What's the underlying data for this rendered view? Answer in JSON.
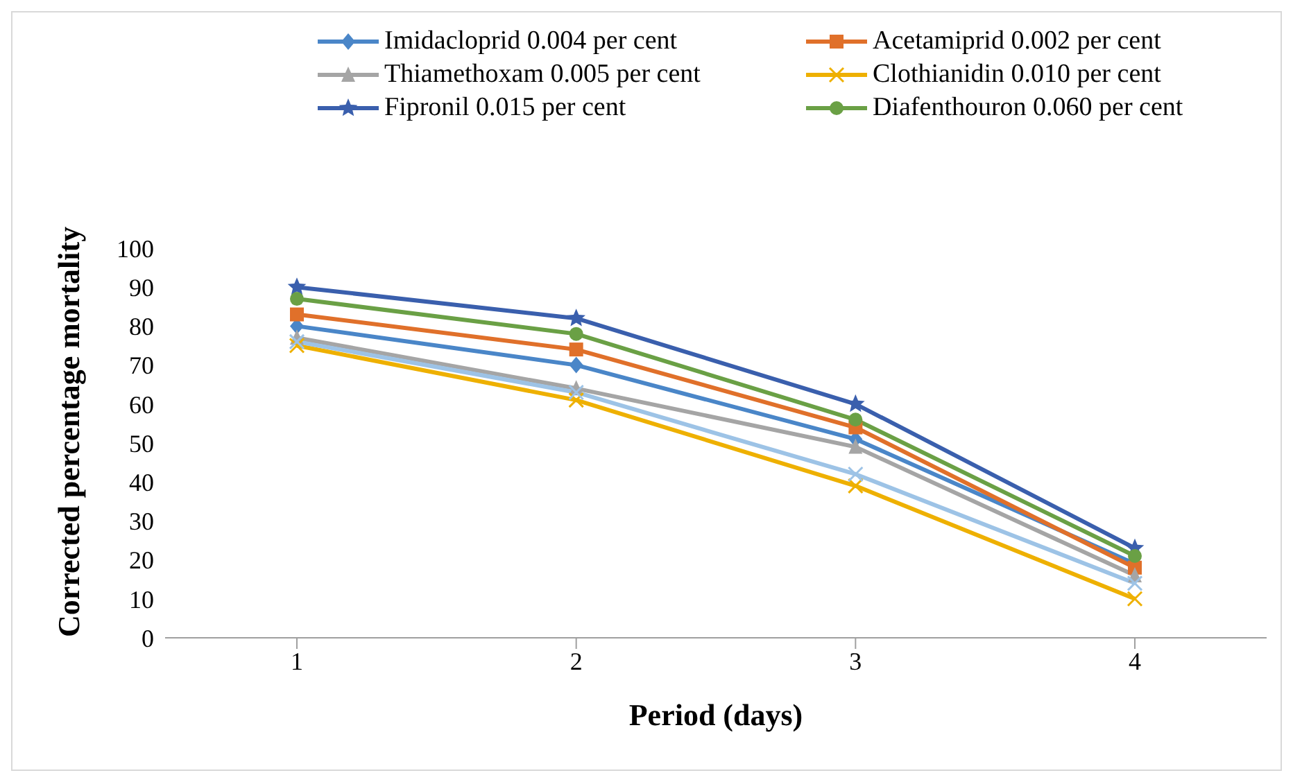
{
  "chart_data": {
    "type": "line",
    "xlabel": "Period (days)",
    "ylabel": "Corrected percentage mortality",
    "categories": [
      "1",
      "2",
      "3",
      "4"
    ],
    "series": [
      {
        "name": "Imidacloprid 0.004 per cent",
        "color": "#4a86c8",
        "marker": "diamond",
        "values": [
          80,
          70,
          51,
          19
        ]
      },
      {
        "name": "Acetamiprid 0.002 per cent",
        "color": "#e0702a",
        "marker": "square",
        "values": [
          83,
          74,
          54,
          18
        ]
      },
      {
        "name": "Thiamethoxam 0.005 per cent",
        "color": "#a5a5a5",
        "marker": "triangle",
        "values": [
          77,
          64,
          49,
          16
        ]
      },
      {
        "name": "Clothianidin 0.010 per cent",
        "color": "#eeb000",
        "marker": "cross",
        "values": [
          75,
          61,
          39,
          10
        ]
      },
      {
        "name": "Fipronil 0.015 per cent",
        "color": "#3a5fad",
        "marker": "star",
        "values": [
          90,
          82,
          60,
          23
        ]
      },
      {
        "name": "Diafenthouron 0.060 per cent",
        "color": "#6aa045",
        "marker": "circle",
        "values": [
          87,
          78,
          56,
          21
        ]
      },
      {
        "color": "#9dc3e6",
        "marker": "cross",
        "values": [
          76,
          63,
          42,
          14
        ]
      }
    ],
    "ylim": [
      0,
      100
    ],
    "yticks": [
      0,
      10,
      20,
      30,
      40,
      50,
      60,
      70,
      80,
      90,
      100
    ],
    "grid": false,
    "legend": "top",
    "line_style": "solid"
  }
}
